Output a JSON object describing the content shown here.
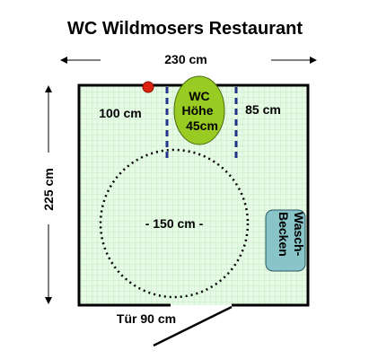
{
  "title": "WC Wildmosers  Restaurant",
  "dimensions": {
    "width": "230 cm",
    "height": "225 cm",
    "left_clearance": "100 cm",
    "right_clearance": "85 cm",
    "turning_circle": "- 150 cm -",
    "door": "Tür 90 cm"
  },
  "wc": {
    "line1": "WC",
    "line2": "Höhe",
    "line3": "45cm"
  },
  "washbasin": {
    "line1": "Wasch-",
    "line2": "Becken"
  },
  "colors": {
    "floor": "#e6fae6",
    "grid": "#b9e6b9",
    "wc": "#99cc22",
    "washbasin": "#88c4c8",
    "marker": "#dd2211",
    "grab_bar": "#223388"
  }
}
